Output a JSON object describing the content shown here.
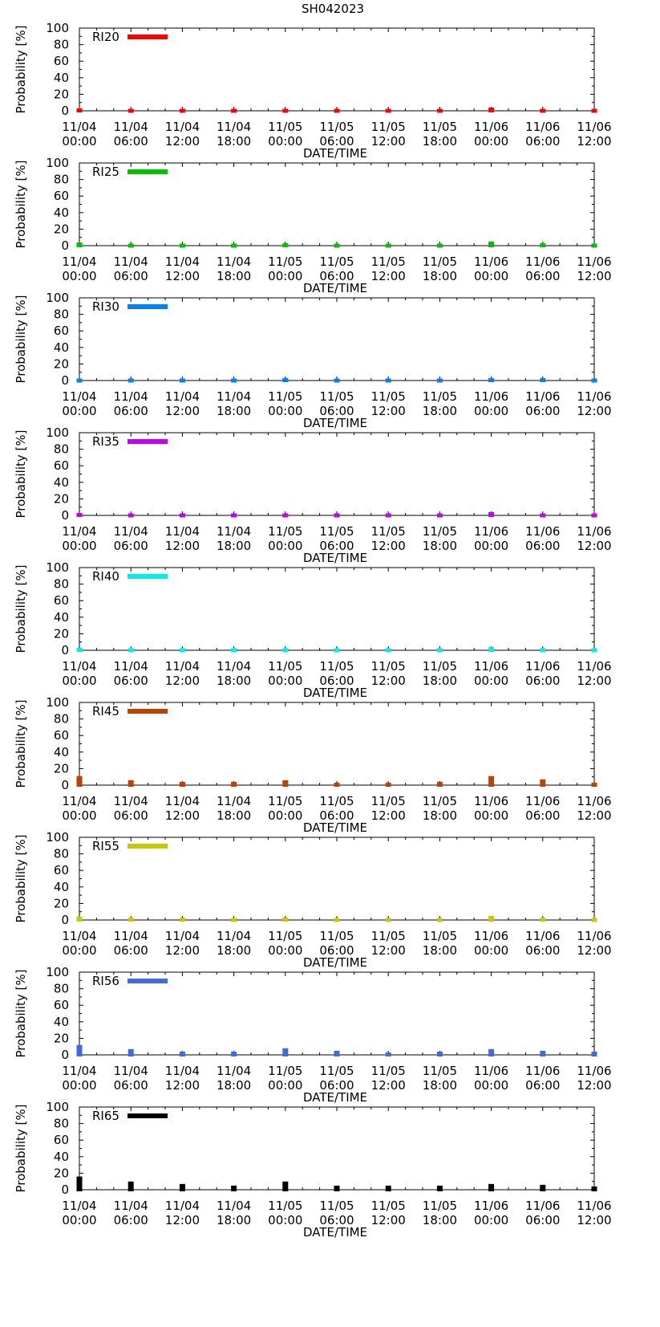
{
  "title": "SH042023",
  "chart_data": {
    "type": "bar",
    "title": "SH042023",
    "xlabel": "DATE/TIME",
    "ylabel": "Probability [%]",
    "ylim": [
      0,
      100
    ],
    "yticks": [
      0,
      20,
      40,
      60,
      80,
      100
    ],
    "xtick_labels": [
      [
        "11/04",
        "00:00"
      ],
      [
        "11/04",
        "06:00"
      ],
      [
        "11/04",
        "12:00"
      ],
      [
        "11/04",
        "18:00"
      ],
      [
        "11/05",
        "00:00"
      ],
      [
        "11/05",
        "06:00"
      ],
      [
        "11/05",
        "12:00"
      ],
      [
        "11/05",
        "18:00"
      ],
      [
        "11/06",
        "00:00"
      ],
      [
        "11/06",
        "06:00"
      ],
      [
        "11/06",
        "12:00"
      ]
    ],
    "series": [
      {
        "name": "RI20",
        "color": "#ff0000",
        "values": [
          1,
          0,
          0,
          0,
          0,
          0,
          0,
          0,
          2,
          0,
          0
        ]
      },
      {
        "name": "RI25",
        "color": "#00c000",
        "values": [
          2,
          0,
          0,
          0,
          1,
          0,
          0,
          0,
          3,
          1,
          0
        ]
      },
      {
        "name": "RI30",
        "color": "#0080ff",
        "values": [
          0,
          0,
          0,
          0,
          1,
          0,
          0,
          0,
          1,
          1,
          0
        ]
      },
      {
        "name": "RI35",
        "color": "#c000ff",
        "values": [
          1,
          0,
          0,
          0,
          0,
          0,
          0,
          0,
          2,
          0,
          0
        ]
      },
      {
        "name": "RI40",
        "color": "#00eeee",
        "values": [
          1,
          0,
          0,
          0,
          0,
          0,
          0,
          0,
          2,
          0,
          0
        ]
      },
      {
        "name": "RI45",
        "color": "#c04000",
        "values": [
          9,
          4,
          2,
          2,
          4,
          1,
          1,
          2,
          9,
          5,
          1
        ]
      },
      {
        "name": "RI55",
        "color": "#c8c800",
        "values": [
          2,
          1,
          1,
          0,
          1,
          0,
          0,
          0,
          3,
          1,
          0
        ]
      },
      {
        "name": "RI56",
        "color": "#4169e1",
        "values": [
          10,
          5,
          2,
          2,
          6,
          3,
          1,
          2,
          5,
          3,
          2
        ]
      },
      {
        "name": "RI65",
        "color": "#000000",
        "values": [
          14,
          8,
          5,
          3,
          8,
          3,
          3,
          3,
          5,
          4,
          2
        ]
      }
    ]
  }
}
